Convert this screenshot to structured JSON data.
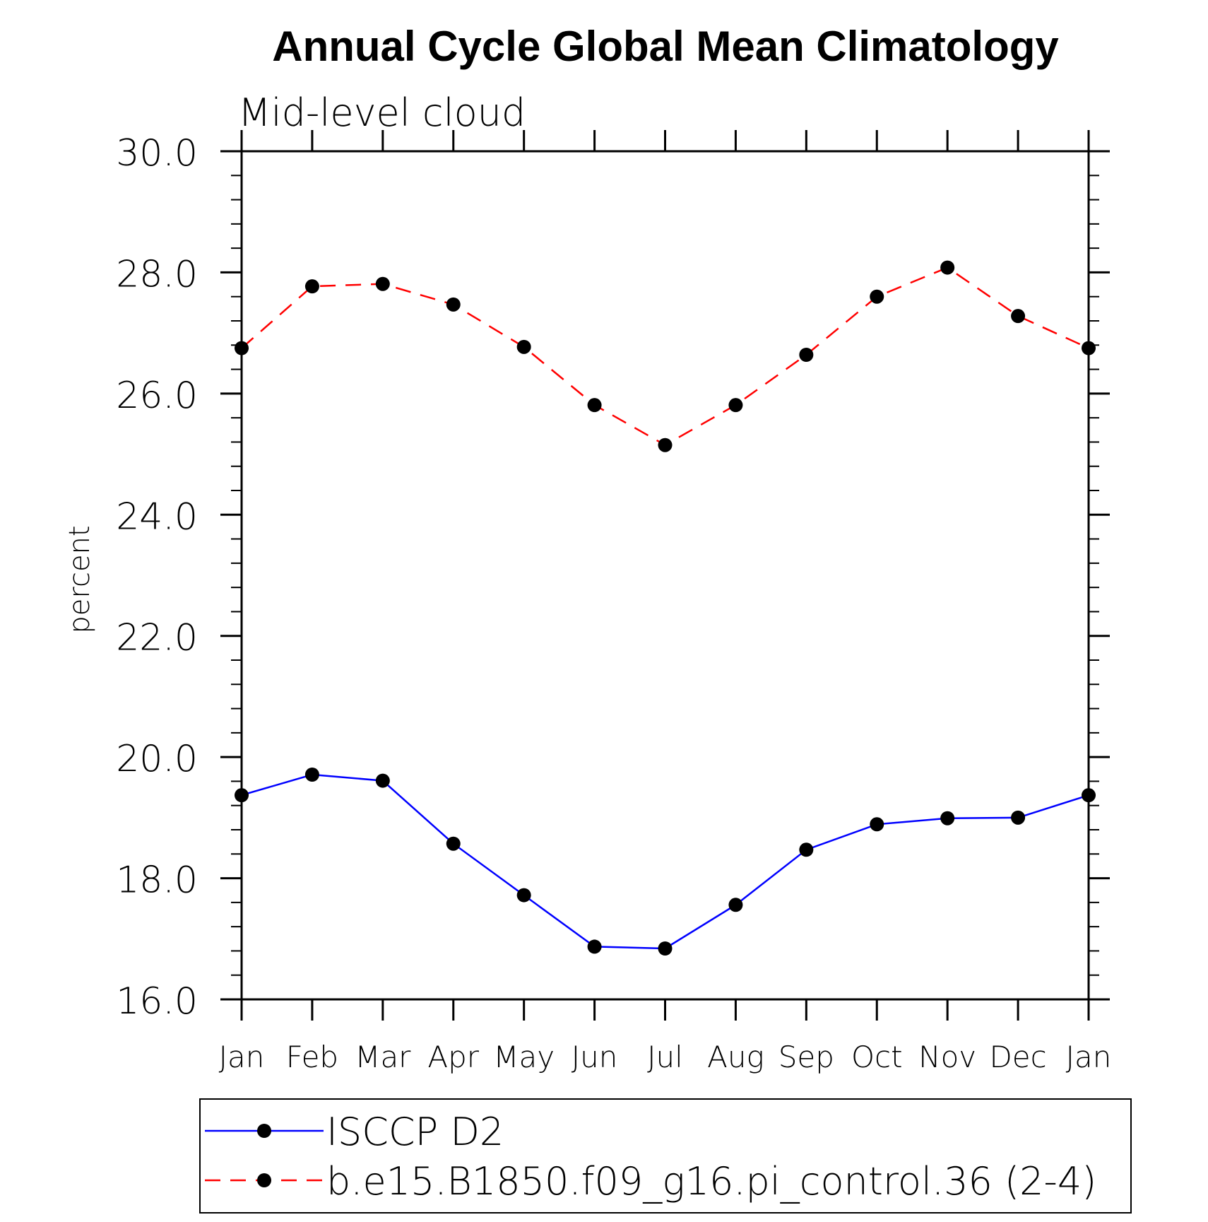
{
  "chart_data": {
    "type": "line",
    "title": "Annual Cycle Global Mean Climatology",
    "subtitle": "Mid-level cloud",
    "xlabel": "",
    "ylabel": "percent",
    "categories": [
      "Jan",
      "Feb",
      "Mar",
      "Apr",
      "May",
      "Jun",
      "Jul",
      "Aug",
      "Sep",
      "Oct",
      "Nov",
      "Dec",
      "Jan"
    ],
    "ylim": [
      16.0,
      30.0
    ],
    "yticks": [
      "16.0",
      "18.0",
      "20.0",
      "22.0",
      "24.0",
      "26.0",
      "28.0",
      "30.0"
    ],
    "grid": false,
    "legend_position": "bottom",
    "series": [
      {
        "name": "ISCCP D2",
        "color": "#0000ff",
        "line_style": "solid",
        "marker": "filled-circle",
        "values": [
          19.37,
          19.71,
          19.61,
          18.57,
          17.72,
          16.87,
          16.84,
          17.56,
          18.47,
          18.89,
          18.99,
          19.0,
          19.37
        ]
      },
      {
        "name": "b.e15.B1850.f09_g16.pi_control.36 (2-4)",
        "color": "#ff0000",
        "line_style": "dashed",
        "marker": "filled-circle",
        "values": [
          26.75,
          27.77,
          27.81,
          27.47,
          26.77,
          25.81,
          25.15,
          25.81,
          26.64,
          27.6,
          28.08,
          27.28,
          26.75
        ]
      }
    ]
  }
}
